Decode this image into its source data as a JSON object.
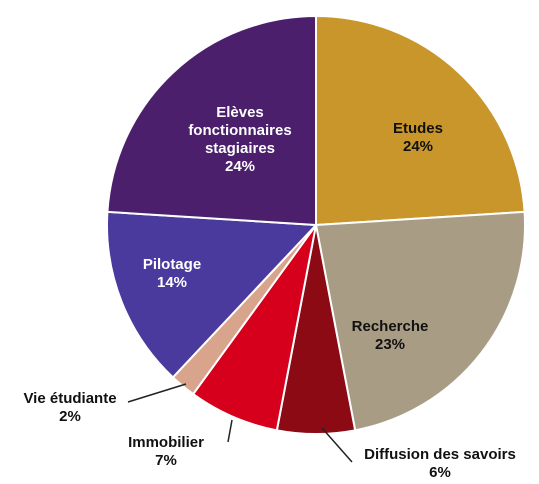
{
  "chart_data": {
    "type": "pie",
    "categories": [
      "Etudes",
      "Recherche",
      "Diffusion des savoirs",
      "Immobilier",
      "Vie étudiante",
      "Pilotage",
      "Elèves fonctionnaires stagiaires"
    ],
    "values": [
      24,
      23,
      6,
      7,
      2,
      14,
      24
    ],
    "value_labels": [
      "24%",
      "23%",
      "6%",
      "7%",
      "2%",
      "14%",
      "24%"
    ],
    "colors": [
      "#c8962a",
      "#a89c84",
      "#8b0a14",
      "#d6001c",
      "#d9a48c",
      "#4a3a9e",
      "#4b1f6c"
    ]
  }
}
